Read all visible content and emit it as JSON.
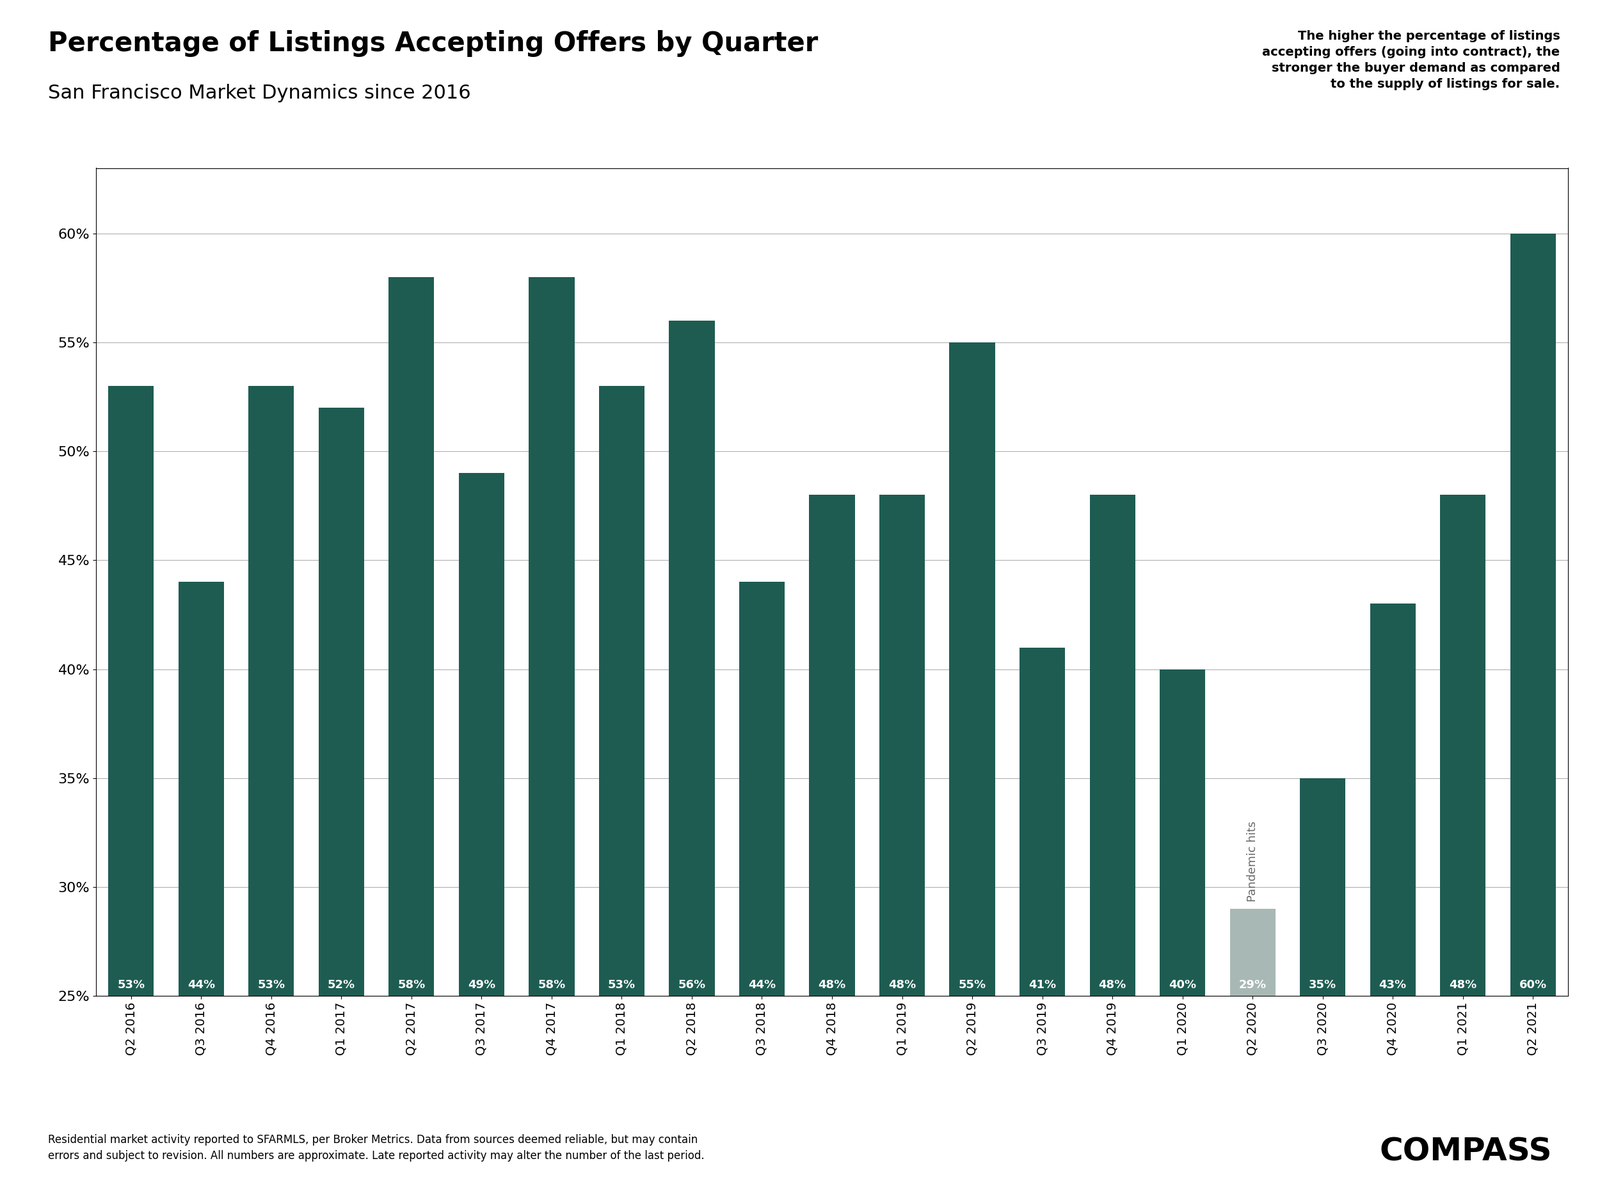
{
  "chart_data": {
    "type": "bar",
    "title": "Percentage of Listings Accepting Offers by Quarter",
    "subtitle": "San Francisco Market Dynamics since 2016",
    "categories": [
      "Q2 2016",
      "Q3 2016",
      "Q4 2016",
      "Q1 2017",
      "Q2 2017",
      "Q3 2017",
      "Q4 2017",
      "Q1 2018",
      "Q2 2018",
      "Q3 2018",
      "Q4 2018",
      "Q1 2019",
      "Q2 2019",
      "Q3 2019",
      "Q4 2019",
      "Q1 2020",
      "Q2 2020",
      "Q3 2020",
      "Q4 2020",
      "Q1 2021",
      "Q2 2021"
    ],
    "values": [
      53,
      44,
      53,
      52,
      58,
      49,
      58,
      53,
      56,
      44,
      48,
      48,
      55,
      41,
      48,
      40,
      29,
      35,
      43,
      48,
      60
    ],
    "value_labels": [
      "53%",
      "44%",
      "53%",
      "52%",
      "58%",
      "49%",
      "58%",
      "53%",
      "56%",
      "44%",
      "48%",
      "48%",
      "55%",
      "41%",
      "48%",
      "40%",
      "29%",
      "35%",
      "43%",
      "48%",
      "60%"
    ],
    "colors": [
      "#1e5c52",
      "#1e5c52",
      "#1e5c52",
      "#1e5c52",
      "#1e5c52",
      "#1e5c52",
      "#1e5c52",
      "#1e5c52",
      "#1e5c52",
      "#1e5c52",
      "#1e5c52",
      "#1e5c52",
      "#1e5c52",
      "#1e5c52",
      "#1e5c52",
      "#1e5c52",
      "#a8b8b4",
      "#1e5c52",
      "#1e5c52",
      "#1e5c52",
      "#1e5c52"
    ],
    "ylim": [
      25,
      63
    ],
    "yticks": [
      {
        "value": 25,
        "label": "25%"
      },
      {
        "value": 30,
        "label": "30%"
      },
      {
        "value": 35,
        "label": "35%"
      },
      {
        "value": 40,
        "label": "40%"
      },
      {
        "value": 45,
        "label": "45%"
      },
      {
        "value": 50,
        "label": "50%"
      },
      {
        "value": 55,
        "label": "55%"
      },
      {
        "value": 60,
        "label": "60%"
      }
    ],
    "grid": true,
    "data_labels": true,
    "annotations": [
      {
        "text": "Pandemic hits",
        "x": "Q2 2020"
      },
      {
        "text": "The higher the percentage of listings\naccepting offers (going into contract), the\nstronger the buyer demand as compared\nto the supply of listings for sale."
      },
      {
        "text": "Residential market activity reported to SFARMLS, per Broker Metrics. Data from sources deemed reliable, but may contain\nerrors and subject to revision. All numbers are approximate. Late reported activity may alter the number of the last period."
      },
      {
        "text": "COMPASS"
      }
    ]
  }
}
